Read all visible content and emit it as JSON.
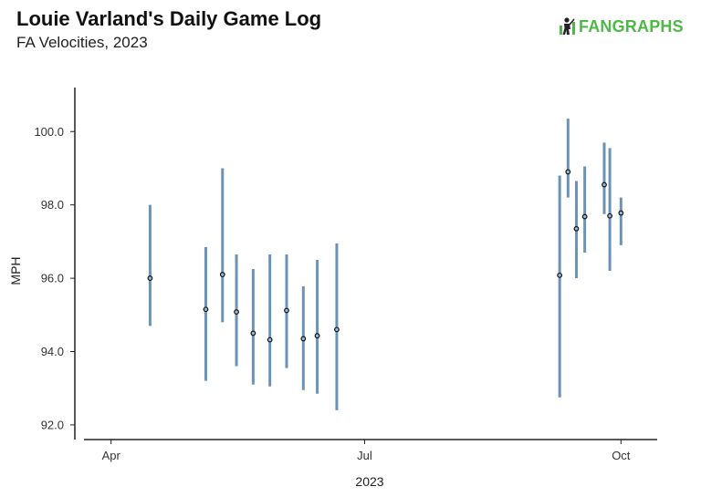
{
  "title": "Louie Varland's Daily Game Log",
  "subtitle": "FA Velocities, 2023",
  "logo": {
    "text": "FANGRAPHS",
    "icon": "fangraphs-player-icon",
    "color": "#4fb848"
  },
  "colors": {
    "range": "#6b93b8",
    "point_fill": "#9fb6c9",
    "point_stroke": "#111111",
    "axis": "#222222"
  },
  "chart_data": {
    "type": "scatter",
    "title": "Louie Varland's Daily Game Log",
    "subtitle": "FA Velocities, 2023",
    "xlabel": "2023",
    "ylabel": "MPH",
    "ylim": [
      91.6,
      101.2
    ],
    "xlim": [
      "2023-03-19",
      "2023-10-14"
    ],
    "grid": false,
    "x_ticks": [
      {
        "date": "2023-04-01",
        "label": "Apr"
      },
      {
        "date": "2023-07-01",
        "label": "Jul"
      },
      {
        "date": "2023-10-01",
        "label": "Oct"
      }
    ],
    "y_ticks": [
      {
        "value": 92,
        "label": "92.0"
      },
      {
        "value": 94,
        "label": "94.0"
      },
      {
        "value": 96,
        "label": "96.0"
      },
      {
        "value": 98,
        "label": "98.0"
      },
      {
        "value": 100,
        "label": "100.0"
      }
    ],
    "series": [
      {
        "points": [
          {
            "date": "2023-04-15",
            "avg": 96.0,
            "min": 94.7,
            "max": 98.0
          },
          {
            "date": "2023-05-05",
            "avg": 95.15,
            "min": 93.2,
            "max": 96.85
          },
          {
            "date": "2023-05-11",
            "avg": 96.1,
            "min": 94.8,
            "max": 99.0
          },
          {
            "date": "2023-05-16",
            "avg": 95.08,
            "min": 93.6,
            "max": 96.65
          },
          {
            "date": "2023-05-22",
            "avg": 94.5,
            "min": 93.1,
            "max": 96.25
          },
          {
            "date": "2023-05-28",
            "avg": 94.32,
            "min": 93.05,
            "max": 96.65
          },
          {
            "date": "2023-06-03",
            "avg": 95.12,
            "min": 93.55,
            "max": 96.65
          },
          {
            "date": "2023-06-09",
            "avg": 94.35,
            "min": 92.95,
            "max": 95.78
          },
          {
            "date": "2023-06-14",
            "avg": 94.43,
            "min": 92.85,
            "max": 96.5
          },
          {
            "date": "2023-06-21",
            "avg": 94.6,
            "min": 92.4,
            "max": 96.95
          },
          {
            "date": "2023-09-09",
            "avg": 96.08,
            "min": 92.75,
            "max": 98.8
          },
          {
            "date": "2023-09-12",
            "avg": 98.9,
            "min": 98.2,
            "max": 100.35
          },
          {
            "date": "2023-09-15",
            "avg": 97.35,
            "min": 96.0,
            "max": 98.65
          },
          {
            "date": "2023-09-18",
            "avg": 97.68,
            "min": 96.7,
            "max": 99.05
          },
          {
            "date": "2023-09-25",
            "avg": 98.55,
            "min": 97.75,
            "max": 99.7
          },
          {
            "date": "2023-09-27",
            "avg": 97.7,
            "min": 96.2,
            "max": 99.55
          },
          {
            "date": "2023-10-01",
            "avg": 97.78,
            "min": 96.9,
            "max": 98.2
          }
        ]
      }
    ]
  }
}
